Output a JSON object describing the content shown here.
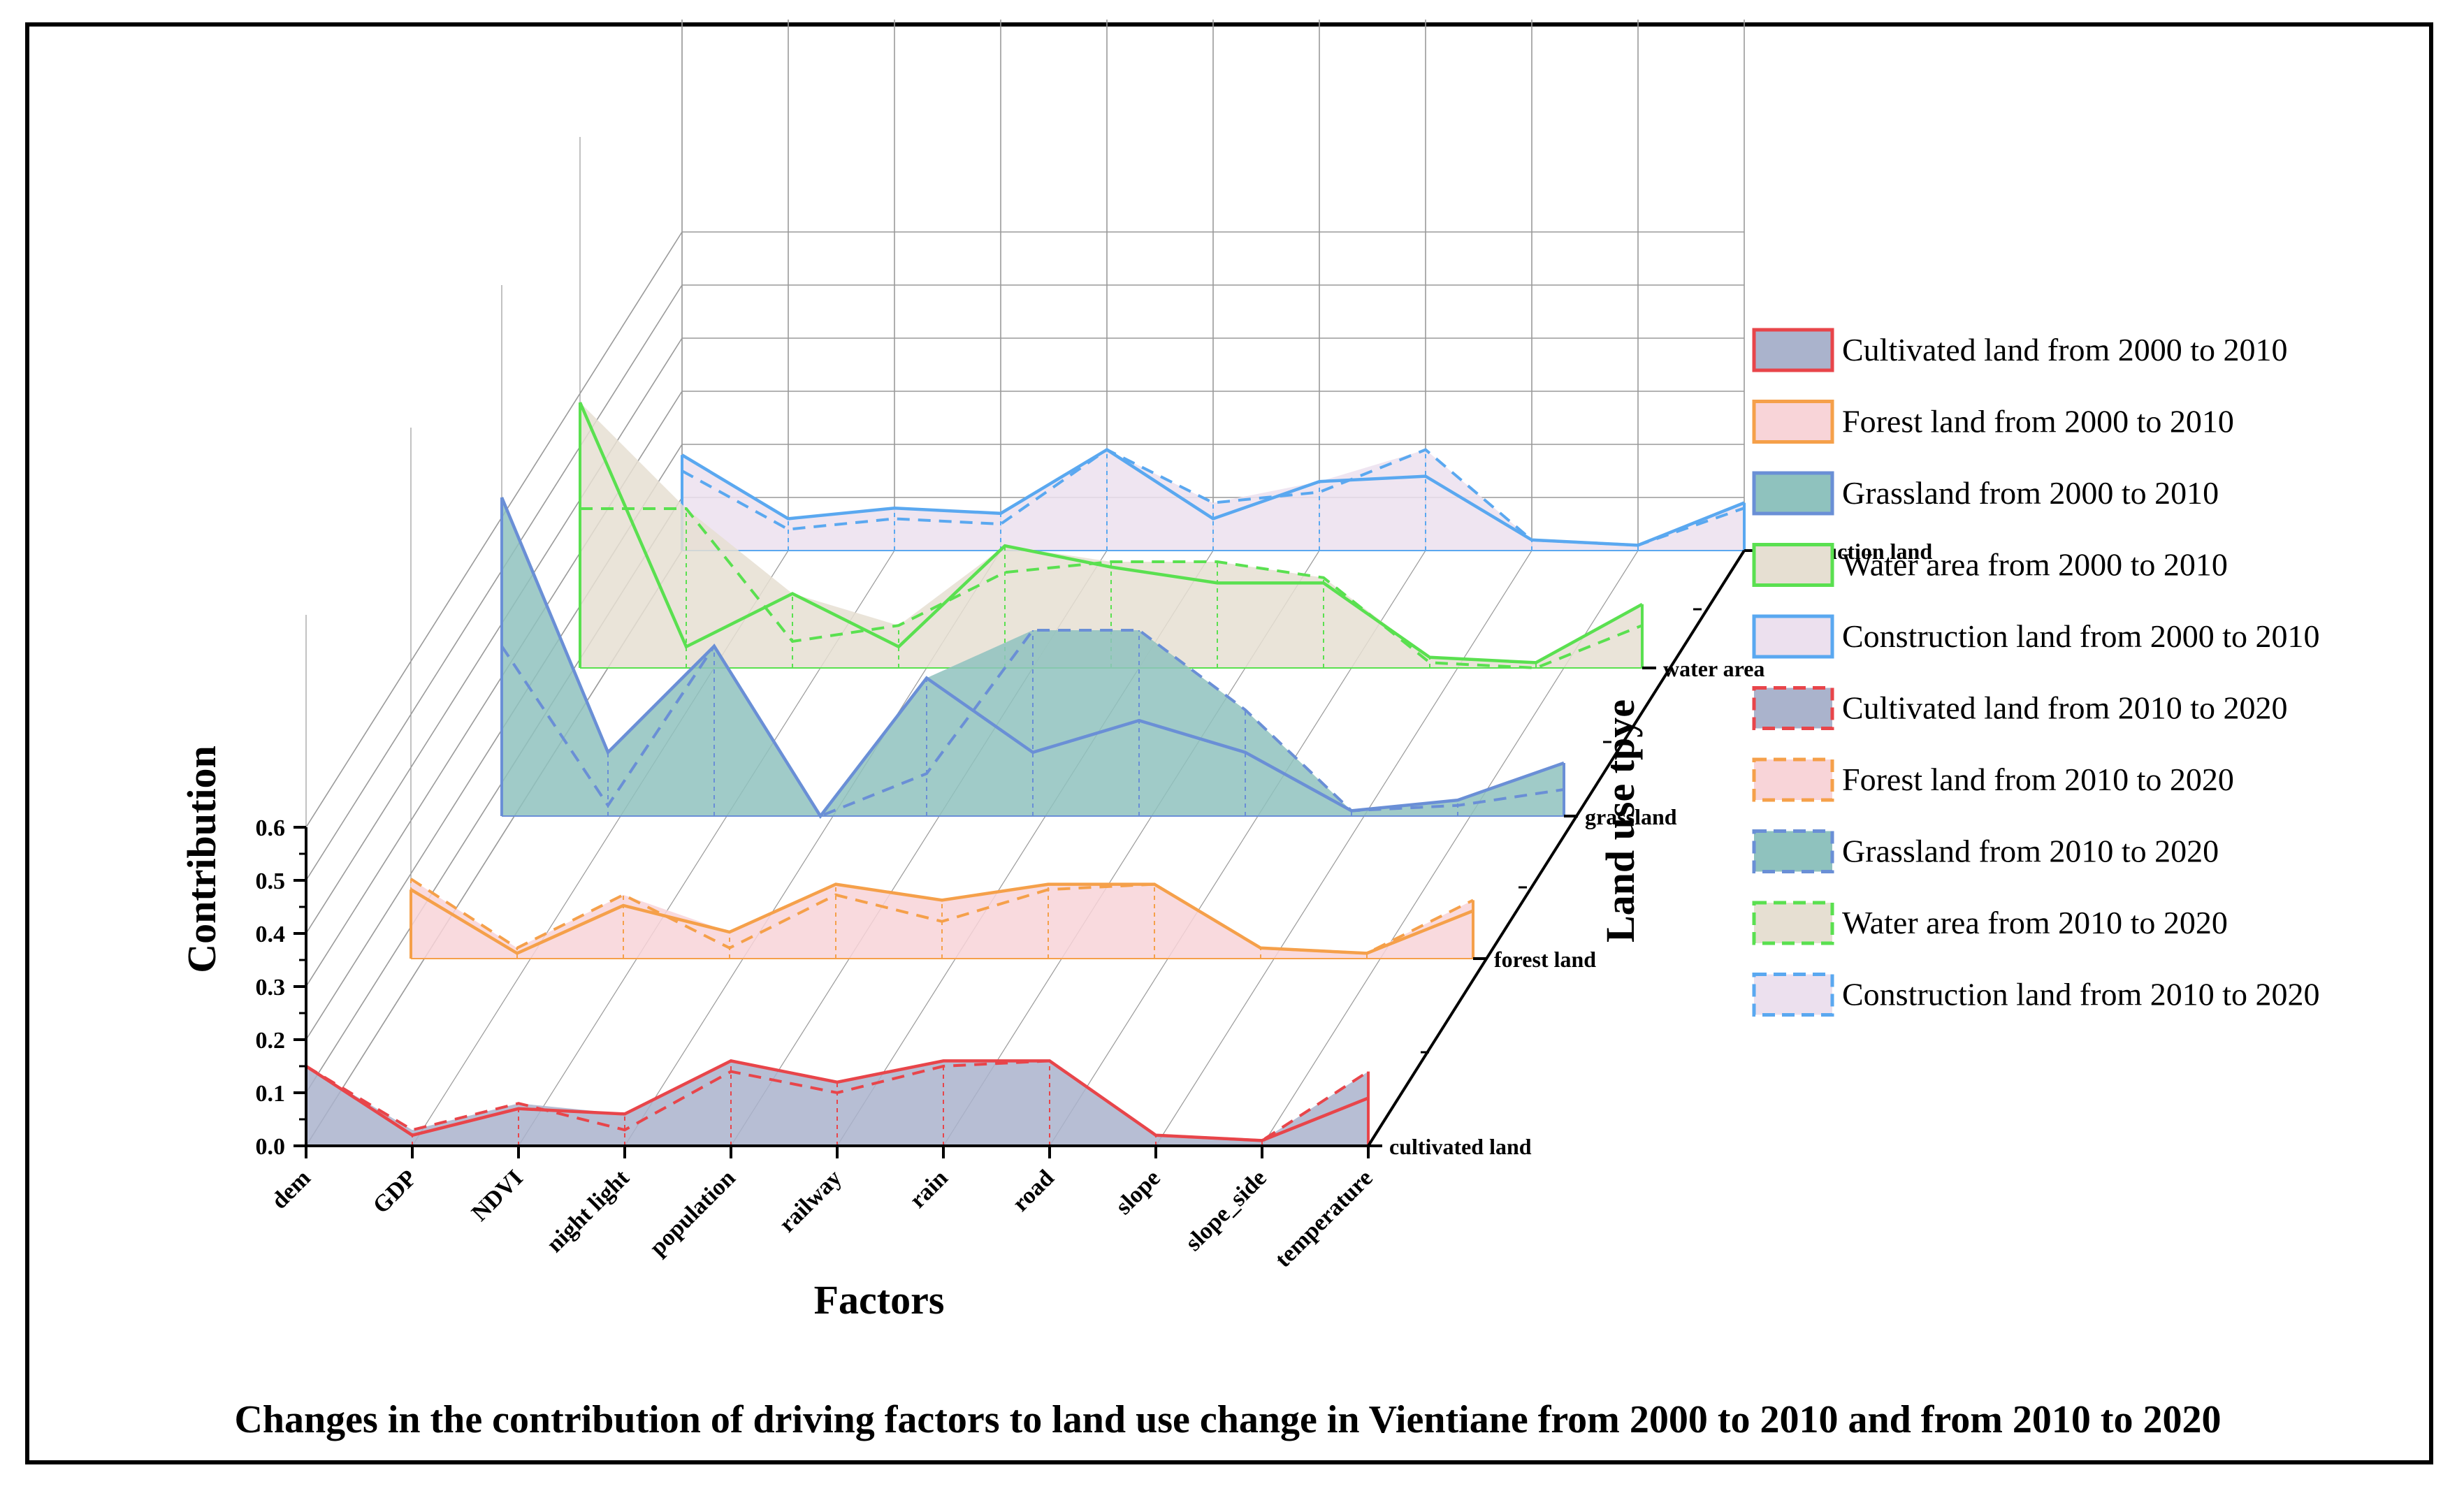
{
  "chart_data": {
    "type": "3d-area",
    "title": "Changes in the contribution of driving factors to land use change in Vientiane from 2000 to 2010 and from 2010 to 2020",
    "xlabel": "Factors",
    "ylabel": "Contribution",
    "zlabel": "Land use tpye",
    "ylim": [
      0,
      0.6
    ],
    "yticks": [
      "0.0",
      "0.1",
      "0.2",
      "0.3",
      "0.4",
      "0.5",
      "0.6"
    ],
    "categories": [
      "dem",
      "GDP",
      "NDVI",
      "night light",
      "population",
      "railway",
      "rain",
      "road",
      "slope",
      "slope_side",
      "temperature"
    ],
    "land_use_types": [
      "cultivated land",
      "forest land",
      "grassland",
      "water area",
      "construction land"
    ],
    "series": [
      {
        "name": "Cultivated land from 2000 to 2010",
        "land_use": 0,
        "period": "2000-2010",
        "color": "#e8454a",
        "fill": "#aab3cc",
        "values": [
          0.15,
          0.02,
          0.07,
          0.06,
          0.16,
          0.12,
          0.16,
          0.16,
          0.02,
          0.01,
          0.09
        ]
      },
      {
        "name": "Cultivated land from 2010 to 2020",
        "land_use": 0,
        "period": "2010-2020",
        "color": "#e8454a",
        "fill": "#aab3cc",
        "values": [
          0.15,
          0.03,
          0.08,
          0.03,
          0.14,
          0.1,
          0.15,
          0.16,
          0.02,
          0.01,
          0.14
        ]
      },
      {
        "name": "Forest land from 2000 to 2010",
        "land_use": 1,
        "period": "2000-2010",
        "color": "#f5a04a",
        "fill": "#f8d4d8",
        "values": [
          0.13,
          0.01,
          0.1,
          0.05,
          0.14,
          0.11,
          0.14,
          0.14,
          0.02,
          0.01,
          0.09
        ]
      },
      {
        "name": "Forest land from 2010 to 2020",
        "land_use": 1,
        "period": "2010-2020",
        "color": "#f5a04a",
        "fill": "#f8d4d8",
        "values": [
          0.15,
          0.02,
          0.12,
          0.02,
          0.12,
          0.07,
          0.13,
          0.14,
          0.02,
          0.01,
          0.11
        ]
      },
      {
        "name": "Grassland from 2000 to 2010",
        "land_use": 2,
        "period": "2000-2010",
        "color": "#6a8fd6",
        "fill": "#8fc2be",
        "values": [
          0.6,
          0.12,
          0.32,
          0.0,
          0.26,
          0.12,
          0.18,
          0.12,
          0.01,
          0.03,
          0.1
        ]
      },
      {
        "name": "Grassland from 2010 to 2020",
        "land_use": 2,
        "period": "2010-2020",
        "color": "#6a8fd6",
        "fill": "#8fc2be",
        "values": [
          0.32,
          0.02,
          0.32,
          0.0,
          0.08,
          0.35,
          0.35,
          0.2,
          0.01,
          0.02,
          0.05
        ]
      },
      {
        "name": "Water area from 2000 to 2010",
        "land_use": 3,
        "period": "2000-2010",
        "color": "#5ae050",
        "fill": "#e6dfd2",
        "values": [
          0.5,
          0.04,
          0.14,
          0.04,
          0.23,
          0.19,
          0.16,
          0.16,
          0.02,
          0.01,
          0.12
        ]
      },
      {
        "name": "Water area from 2010 to 2020",
        "land_use": 3,
        "period": "2010-2020",
        "color": "#5ae050",
        "fill": "#e6dfd2",
        "values": [
          0.3,
          0.3,
          0.05,
          0.08,
          0.18,
          0.2,
          0.2,
          0.17,
          0.01,
          0.0,
          0.08
        ]
      },
      {
        "name": "Construction land from 2000 to 2010",
        "land_use": 4,
        "period": "2000-2010",
        "color": "#5aa8f0",
        "fill": "#ece0ee",
        "values": [
          0.18,
          0.06,
          0.08,
          0.07,
          0.19,
          0.06,
          0.13,
          0.14,
          0.02,
          0.01,
          0.09
        ]
      },
      {
        "name": "Construction land from 2010 to 2020",
        "land_use": 4,
        "period": "2010-2020",
        "color": "#5aa8f0",
        "fill": "#ece0ee",
        "values": [
          0.15,
          0.04,
          0.06,
          0.05,
          0.19,
          0.09,
          0.11,
          0.19,
          0.02,
          0.01,
          0.08
        ]
      }
    ],
    "legend_position": "right"
  }
}
